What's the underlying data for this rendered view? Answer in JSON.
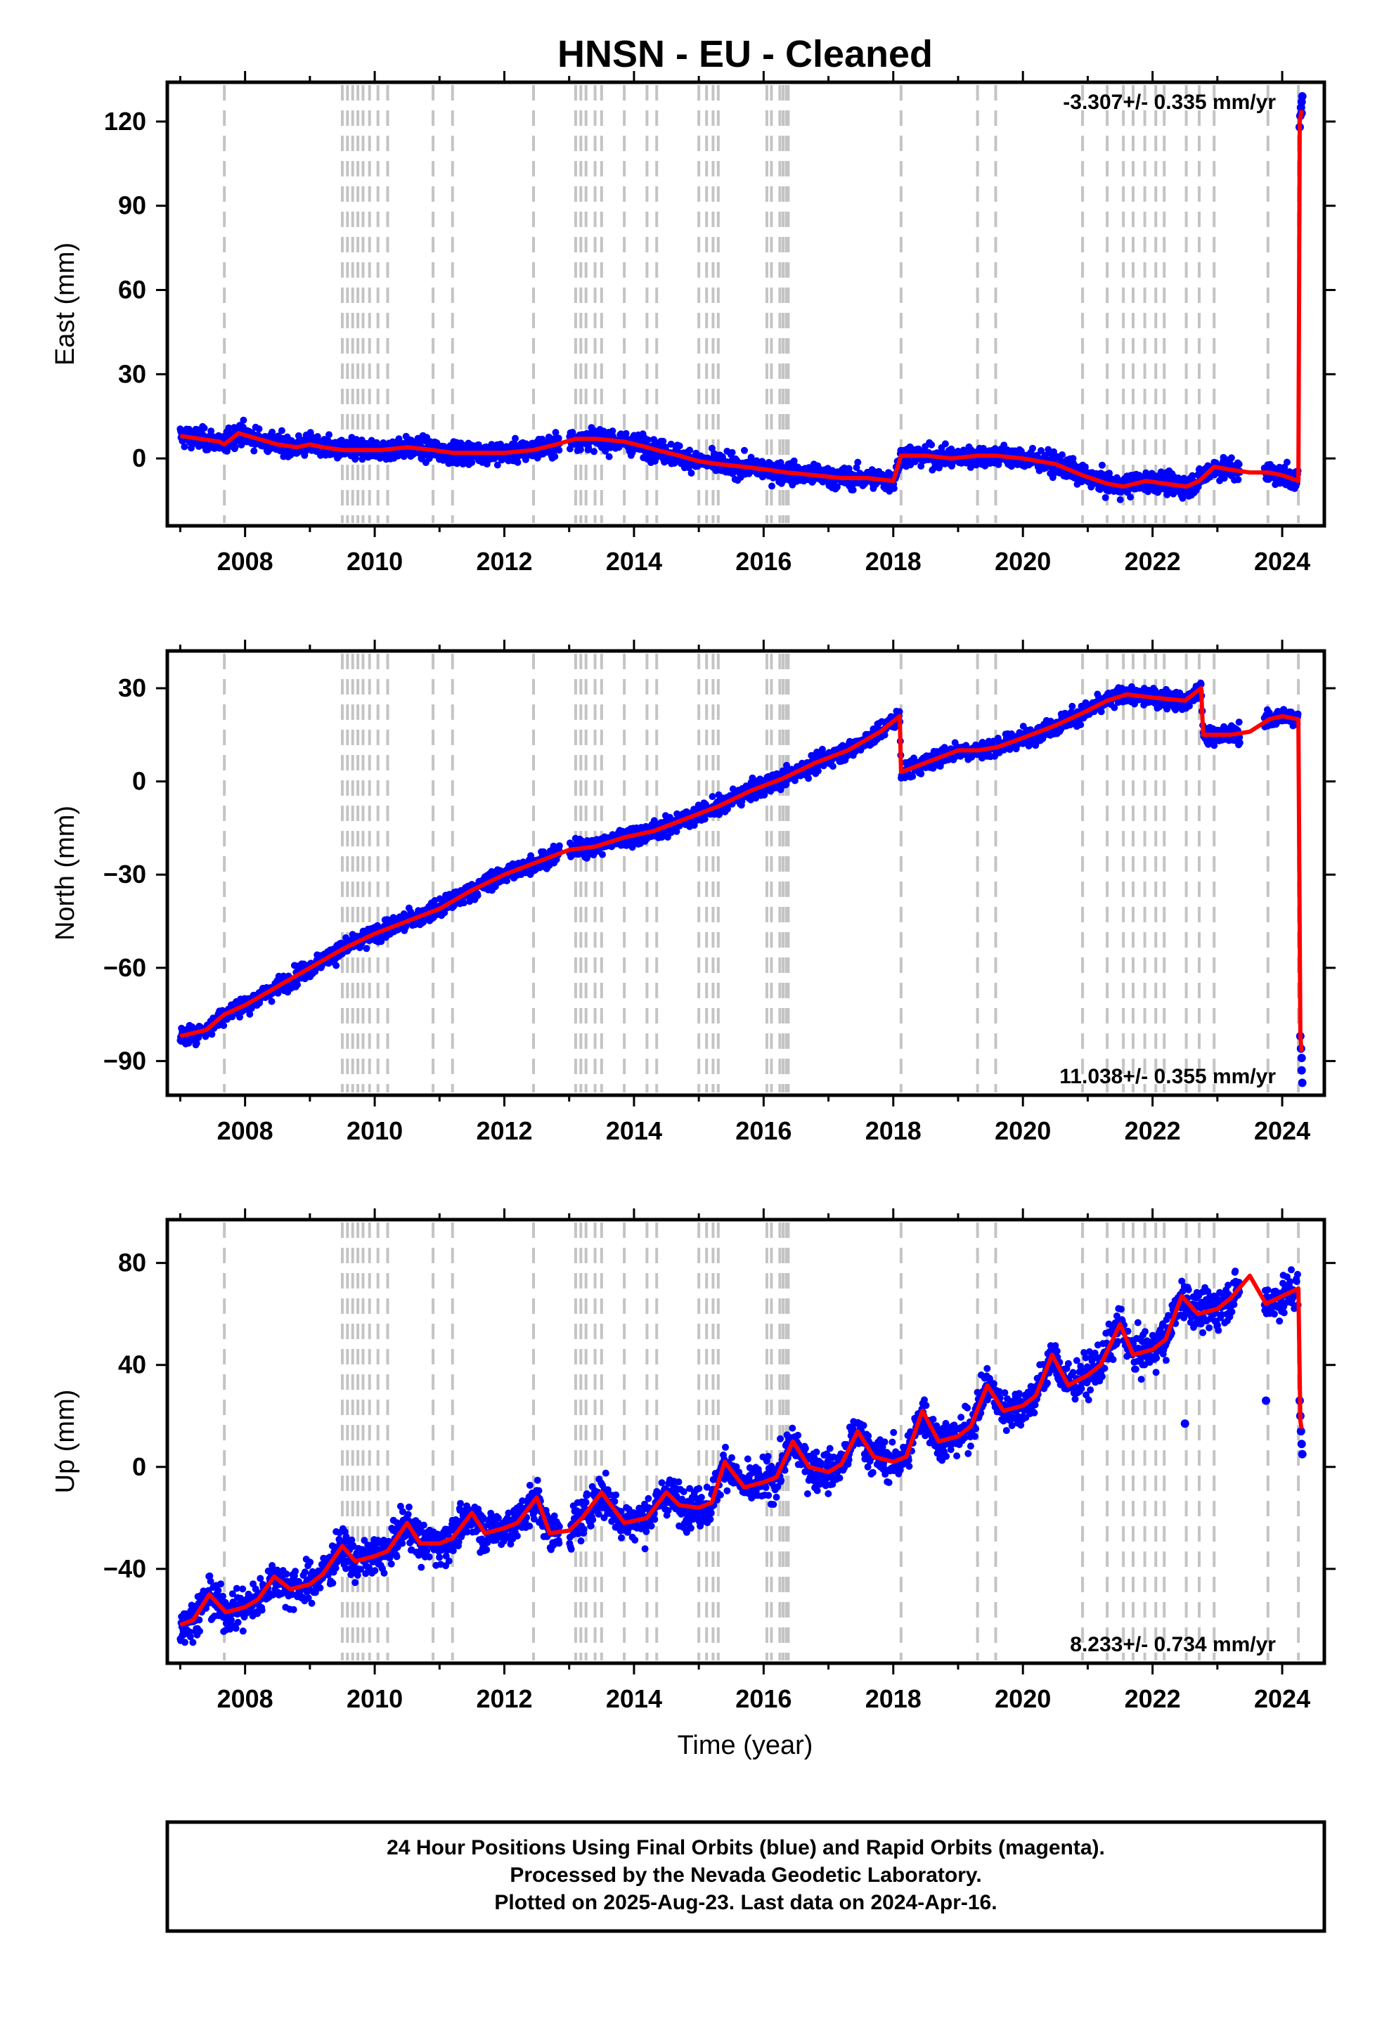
{
  "chart_data": {
    "type": "scatter",
    "title": "HNSN  - EU - Cleaned",
    "xlabel": "Time (year)",
    "x_ticks": [
      "2008",
      "2010",
      "2012",
      "2014",
      "2016",
      "2018",
      "2020",
      "2022",
      "2024"
    ],
    "x_range": [
      2006.8,
      2024.65
    ],
    "event_lines": [
      2007.68,
      2009.5,
      2009.58,
      2009.66,
      2009.74,
      2009.82,
      2009.92,
      2010.05,
      2010.2,
      2010.9,
      2011.2,
      2012.45,
      2013.1,
      2013.18,
      2013.26,
      2013.4,
      2013.5,
      2013.85,
      2014.2,
      2014.35,
      2015.0,
      2015.12,
      2015.22,
      2015.3,
      2016.05,
      2016.12,
      2016.25,
      2016.3,
      2016.35,
      2016.38,
      2018.12,
      2019.3,
      2019.58,
      2020.92,
      2021.3,
      2021.55,
      2021.7,
      2021.88,
      2022.05,
      2022.18,
      2022.52,
      2022.72,
      2022.95,
      2023.78,
      2024.25
    ],
    "series": [
      {
        "component": "east",
        "ylabel": "East (mm)",
        "yticks": [
          0,
          30,
          60,
          90,
          120
        ],
        "ylim": [
          -24,
          134
        ],
        "rate": "-3.307+/- 0.335 mm/yr",
        "rate_position": "top-right",
        "fit_x": [
          2007.0,
          2007.3,
          2007.6,
          2007.68,
          2007.9,
          2008.2,
          2008.5,
          2008.8,
          2009.0,
          2009.2,
          2009.5,
          2009.8,
          2010.1,
          2010.5,
          2010.9,
          2011.2,
          2011.6,
          2012.0,
          2012.45,
          2012.8,
          2013.1,
          2013.4,
          2013.85,
          2014.2,
          2014.35,
          2014.7,
          2015.0,
          2015.3,
          2015.7,
          2016.05,
          2016.35,
          2016.8,
          2017.2,
          2017.6,
          2018.0,
          2018.12,
          2018.5,
          2018.9,
          2019.3,
          2019.58,
          2020.0,
          2020.5,
          2020.92,
          2021.3,
          2021.55,
          2021.9,
          2022.2,
          2022.52,
          2022.72,
          2022.95,
          2023.2,
          2023.5,
          2023.78,
          2024.0,
          2024.25,
          2024.27,
          2024.3
        ],
        "fit_y": [
          8,
          7,
          6,
          5,
          9,
          7,
          5,
          4,
          5,
          4,
          3,
          3,
          3,
          4,
          3,
          2,
          2,
          2,
          3,
          5,
          7,
          7,
          6,
          4,
          3,
          1,
          -1,
          -2,
          -3,
          -4,
          -5,
          -6,
          -7,
          -7,
          -8,
          1,
          1,
          0,
          1,
          1,
          0,
          -2,
          -6,
          -9,
          -10,
          -8,
          -9,
          -10,
          -8,
          -3,
          -4,
          -5,
          -5,
          -6,
          -8,
          120,
          124
        ],
        "noise": 3.2,
        "spike_points": [
          [
            2024.27,
            118
          ],
          [
            2024.28,
            122
          ],
          [
            2024.29,
            125
          ],
          [
            2024.3,
            127
          ],
          [
            2024.31,
            129
          ],
          [
            2024.3,
            123
          ]
        ]
      },
      {
        "component": "north",
        "ylabel": "North (mm)",
        "yticks": [
          -90,
          -60,
          -30,
          0,
          30
        ],
        "ylim": [
          -101,
          42
        ],
        "rate": "11.038+/- 0.355 mm/yr",
        "rate_position": "bottom-right",
        "fit_x": [
          2007.0,
          2007.4,
          2007.68,
          2008.0,
          2008.5,
          2009.0,
          2009.5,
          2010.0,
          2010.5,
          2011.0,
          2011.5,
          2012.0,
          2012.5,
          2013.0,
          2013.4,
          2013.85,
          2014.3,
          2014.8,
          2015.3,
          2015.8,
          2016.3,
          2016.8,
          2017.3,
          2017.8,
          2018.1,
          2018.12,
          2018.5,
          2019.0,
          2019.3,
          2019.6,
          2020.0,
          2020.5,
          2020.92,
          2021.3,
          2021.6,
          2022.0,
          2022.5,
          2022.75,
          2022.78,
          2023.2,
          2023.5,
          2023.8,
          2024.0,
          2024.25,
          2024.28,
          2024.3
        ],
        "fit_y": [
          -82,
          -80,
          -75,
          -72,
          -66,
          -60,
          -54,
          -49,
          -45,
          -41,
          -35,
          -30,
          -26,
          -22,
          -21,
          -18,
          -16,
          -12,
          -8,
          -3,
          1,
          6,
          10,
          16,
          21,
          3,
          6,
          10,
          10,
          11,
          14,
          18,
          22,
          26,
          28,
          27,
          26,
          30,
          15,
          15,
          16,
          20,
          21,
          20,
          -82,
          -87
        ],
        "noise": 2.5,
        "spike_points": [
          [
            2024.28,
            -82
          ],
          [
            2024.29,
            -86
          ],
          [
            2024.3,
            -89
          ],
          [
            2024.3,
            -93
          ],
          [
            2024.31,
            -97
          ]
        ]
      },
      {
        "component": "up",
        "ylabel": "Up (mm)",
        "yticks": [
          -40,
          0,
          40,
          80
        ],
        "ylim": [
          -77,
          97
        ],
        "rate": "8.233+/- 0.734 mm/yr",
        "rate_position": "bottom-right",
        "fit_x": [
          2007.0,
          2007.2,
          2007.45,
          2007.7,
          2008.0,
          2008.2,
          2008.45,
          2008.7,
          2009.0,
          2009.2,
          2009.5,
          2009.7,
          2010.0,
          2010.2,
          2010.5,
          2010.7,
          2011.0,
          2011.2,
          2011.5,
          2011.7,
          2012.0,
          2012.2,
          2012.5,
          2012.7,
          2013.0,
          2013.2,
          2013.5,
          2013.85,
          2014.2,
          2014.5,
          2014.7,
          2015.0,
          2015.2,
          2015.4,
          2015.7,
          2016.0,
          2016.2,
          2016.45,
          2016.7,
          2017.0,
          2017.2,
          2017.45,
          2017.7,
          2018.0,
          2018.2,
          2018.45,
          2018.7,
          2019.0,
          2019.2,
          2019.45,
          2019.7,
          2020.0,
          2020.2,
          2020.45,
          2020.7,
          2021.0,
          2021.2,
          2021.5,
          2021.7,
          2022.0,
          2022.2,
          2022.45,
          2022.7,
          2023.0,
          2023.2,
          2023.5,
          2023.75,
          2024.0,
          2024.25,
          2024.28,
          2024.3
        ],
        "fit_y": [
          -62,
          -60,
          -50,
          -57,
          -55,
          -52,
          -43,
          -48,
          -46,
          -42,
          -31,
          -37,
          -35,
          -33,
          -22,
          -30,
          -30,
          -28,
          -18,
          -26,
          -24,
          -22,
          -12,
          -26,
          -25,
          -20,
          -10,
          -22,
          -20,
          -10,
          -15,
          -16,
          -14,
          2,
          -8,
          -6,
          -4,
          10,
          0,
          -2,
          1,
          14,
          4,
          2,
          4,
          22,
          10,
          12,
          16,
          32,
          22,
          24,
          28,
          44,
          32,
          36,
          40,
          56,
          44,
          46,
          50,
          67,
          60,
          62,
          66,
          75,
          64,
          67,
          70,
          18,
          15
        ],
        "noise": 6.5,
        "spike_points": [
          [
            2024.27,
            26
          ],
          [
            2024.28,
            20
          ],
          [
            2024.29,
            14
          ],
          [
            2024.3,
            9
          ],
          [
            2024.31,
            5
          ],
          [
            2023.75,
            26
          ],
          [
            2022.5,
            17
          ]
        ]
      }
    ],
    "colors": {
      "points": "#0000ff",
      "fit": "#ff0000",
      "event_lines": "#c4c4c4",
      "frame": "#000000"
    }
  },
  "footer": {
    "line1": "24 Hour Positions Using Final Orbits (blue) and Rapid Orbits (magenta).",
    "line2": "Processed by the Nevada Geodetic Laboratory.",
    "line3": "Plotted on 2025-Aug-23. Last data on 2024-Apr-16."
  }
}
